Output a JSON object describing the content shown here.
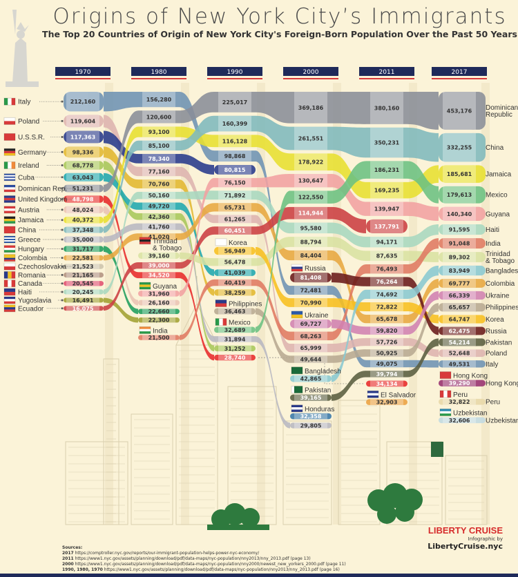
{
  "header": {
    "title": "Origins of New York City’s Immigrants",
    "subtitle": "The Top 20 Countries of Origin of New York City's Foreign-Born Population Over the Past 50 Years"
  },
  "chart_data": {
    "type": "bump",
    "title": "Origins of New York City’s Immigrants",
    "subtitle": "The Top 20 Countries of Origin of New York City's Foreign-Born Population Over the Past 50 Years",
    "years": [
      "1970",
      "1980",
      "1990",
      "2000",
      "2011",
      "2017"
    ],
    "series": [
      {
        "name": "Italy",
        "color": "#6f93b4",
        "flag": {
          "dir": "v",
          "colors": [
            "#2a9a4a",
            "#ffffff",
            "#d83a3a"
          ]
        },
        "values": [
          212160,
          156280,
          98868,
          72481,
          49075,
          49531
        ]
      },
      {
        "name": "Poland",
        "color": "#deb4b0",
        "flag": {
          "dir": "h",
          "colors": [
            "#ffffff",
            "#d83a3a"
          ]
        },
        "values": [
          119604,
          77160,
          61265,
          65999,
          57726,
          52648
        ]
      },
      {
        "name": "U.S.S.R.",
        "color": "#283a8c",
        "flag": {
          "dir": "h",
          "colors": [
            "#d83a3a"
          ]
        },
        "values": [
          117363,
          78340,
          80815,
          null,
          null,
          null
        ]
      },
      {
        "name": "Germany",
        "color": "#e2b830",
        "flag": {
          "dir": "h",
          "colors": [
            "#222222",
            "#d83a3a",
            "#f0c020"
          ]
        },
        "values": [
          98336,
          70760,
          38259,
          null,
          null,
          null
        ]
      },
      {
        "name": "Ireland",
        "color": "#a8c85a",
        "flag": {
          "dir": "v",
          "colors": [
            "#2a9a4a",
            "#ffffff",
            "#f08a3a"
          ]
        },
        "values": [
          68778,
          42360,
          31252,
          null,
          null,
          null
        ]
      },
      {
        "name": "Cuba",
        "color": "#1fa8b0",
        "flag": {
          "dir": "h",
          "colors": [
            "#2a4aa0",
            "#ffffff",
            "#2a4aa0",
            "#ffffff",
            "#2a4aa0"
          ]
        },
        "values": [
          63043,
          49720,
          41039,
          null,
          null,
          null
        ]
      },
      {
        "name": "Dominican Rep.",
        "end_name": [
          "Dominican",
          "Republic"
        ],
        "color": "#8a8e99",
        "flag": {
          "dir": "h",
          "colors": [
            "#2a4aa0",
            "#ffffff",
            "#d83a3a"
          ]
        },
        "values": [
          51231,
          120600,
          225017,
          369186,
          380160,
          453176
        ]
      },
      {
        "name": "United Kingdom",
        "color": "#e82a2a",
        "flag": {
          "dir": "h",
          "colors": [
            "#2a3a8a",
            "#d83a3a",
            "#2a3a8a"
          ]
        },
        "values": [
          48798,
          34520,
          28740,
          null,
          34134,
          null
        ]
      },
      {
        "name": "Austria",
        "color": "#eac4b4",
        "flag": {
          "dir": "h",
          "colors": [
            "#d83a3a",
            "#ffffff",
            "#d83a3a"
          ]
        },
        "values": [
          48024,
          26160,
          null,
          null,
          null,
          null
        ]
      },
      {
        "name": "Jamaica",
        "color": "#e8e030",
        "flag": {
          "dir": "h",
          "colors": [
            "#222222",
            "#f0c020",
            "#2a9a4a"
          ]
        },
        "values": [
          40372,
          93100,
          116128,
          178922,
          169235,
          185681
        ]
      },
      {
        "name": "China",
        "color": "#80babd",
        "flag": {
          "dir": "h",
          "colors": [
            "#d83a3a"
          ]
        },
        "values": [
          37348,
          85100,
          160399,
          261551,
          350231,
          332255
        ]
      },
      {
        "name": "Greece",
        "color": "#b8b8c2",
        "flag": {
          "dir": "h",
          "colors": [
            "#2a5aa8",
            "#ffffff",
            "#2a5aa8",
            "#ffffff",
            "#2a5aa8"
          ]
        },
        "values": [
          35000,
          41760,
          31894,
          29805,
          null,
          null
        ]
      },
      {
        "name": "Hungary",
        "color": "#1f9e5e",
        "flag": {
          "dir": "h",
          "colors": [
            "#d83a3a",
            "#ffffff",
            "#2a9a4a"
          ]
        },
        "values": [
          31717,
          22660,
          null,
          null,
          null,
          null
        ]
      },
      {
        "name": "Colombia",
        "color": "#e8a840",
        "flag": {
          "dir": "h",
          "colors": [
            "#f0c020",
            "#f0c020",
            "#2a3a8a",
            "#d83a3a"
          ]
        },
        "values": [
          22581,
          41020,
          65731,
          84404,
          65678,
          69777
        ]
      },
      {
        "name": "Czechoslovakia",
        "color": "#cdc4ac",
        "flag": {
          "dir": "h",
          "colors": [
            "#ffffff",
            "#d83a3a"
          ]
        },
        "values": [
          21523,
          null,
          null,
          null,
          null,
          null
        ]
      },
      {
        "name": "Romania",
        "color": "#b29280",
        "flag": {
          "dir": "v",
          "colors": [
            "#2a3a8a",
            "#f0c020",
            "#d83a3a"
          ]
        },
        "values": [
          21165,
          null,
          null,
          null,
          null,
          null
        ]
      },
      {
        "name": "Canada",
        "color": "#e05070",
        "flag": {
          "dir": "v",
          "colors": [
            "#d83a3a",
            "#ffffff",
            "#d83a3a"
          ]
        },
        "values": [
          20545,
          null,
          null,
          null,
          null,
          null
        ]
      },
      {
        "name": "Haiti",
        "color": "#a8d8c0",
        "flag": {
          "dir": "h",
          "colors": [
            "#2a3a8a",
            "#d83a3a"
          ]
        },
        "values": [
          20245,
          50160,
          71892,
          95580,
          94171,
          91595
        ]
      },
      {
        "name": "Yugoslavia",
        "color": "#a2a232",
        "flag": {
          "dir": "h",
          "colors": [
            "#2a3a8a",
            "#ffffff",
            "#d83a3a"
          ]
        },
        "values": [
          16491,
          22300,
          null,
          null,
          null,
          null
        ]
      },
      {
        "name": "Ecuador",
        "color": "#cc3f42",
        "flag": {
          "dir": "h",
          "colors": [
            "#f0c020",
            "#2a3a8a",
            "#d83a3a"
          ]
        },
        "values": [
          16075,
          39000,
          60451,
          114944,
          137791,
          null
        ]
      },
      {
        "name": "Trinidad & Tobago",
        "lines": [
          "Trinidad",
          "& Tobago"
        ],
        "color": "#d9e2a2",
        "flag": {
          "dir": "h",
          "colors": [
            "#d83a3a",
            "#222222",
            "#d83a3a"
          ]
        },
        "values": [
          null,
          39160,
          56478,
          88794,
          87635,
          89302
        ]
      },
      {
        "name": "Guyana",
        "color": "#f2a2a2",
        "flag": {
          "dir": "h",
          "colors": [
            "#2a9a4a",
            "#f0c020",
            "#2a9a4a"
          ]
        },
        "values": [
          null,
          31960,
          76150,
          130647,
          139947,
          140340
        ]
      },
      {
        "name": "India",
        "color": "#e07a62",
        "flag": {
          "dir": "h",
          "colors": [
            "#f08a3a",
            "#ffffff",
            "#2a9a4a"
          ]
        },
        "values": [
          null,
          21500,
          40419,
          68263,
          76493,
          91048
        ]
      },
      {
        "name": "Korea",
        "color": "#f8c020",
        "flag": {
          "dir": "h",
          "colors": [
            "#ffffff"
          ]
        },
        "values": [
          null,
          null,
          56949,
          70990,
          72822,
          64747
        ]
      },
      {
        "name": "Philippines",
        "color": "#b8aa92",
        "flag": {
          "dir": "h",
          "colors": [
            "#2a3a8a",
            "#d83a3a"
          ]
        },
        "values": [
          null,
          null,
          36463,
          49644,
          50925,
          65657
        ]
      },
      {
        "name": "Mexico",
        "color": "#6cc282",
        "flag": {
          "dir": "v",
          "colors": [
            "#2a9a4a",
            "#ffffff",
            "#d83a3a"
          ]
        },
        "values": [
          null,
          null,
          32689,
          122550,
          186231,
          179613
        ]
      },
      {
        "name": "Russia",
        "color": "#6a1a1a",
        "flag": {
          "dir": "h",
          "colors": [
            "#ffffff",
            "#2a3a8a",
            "#d83a3a"
          ]
        },
        "values": [
          null,
          null,
          null,
          81408,
          76264,
          62475
        ]
      },
      {
        "name": "Ukraine",
        "color": "#d282b2",
        "flag": {
          "dir": "h",
          "colors": [
            "#2a5aa8",
            "#f0c020"
          ]
        },
        "values": [
          null,
          null,
          null,
          69727,
          59820,
          66339
        ]
      },
      {
        "name": "Bangladesh",
        "color": "#8acad2",
        "flag": {
          "dir": "h",
          "colors": [
            "#1a6a3a"
          ]
        },
        "values": [
          null,
          null,
          null,
          42865,
          74692,
          83949
        ]
      },
      {
        "name": "Pakistan",
        "color": "#5a5e40",
        "flag": {
          "dir": "v",
          "colors": [
            "#ffffff",
            "#1a6a3a",
            "#1a6a3a",
            "#1a6a3a"
          ]
        },
        "values": [
          null,
          null,
          null,
          39165,
          39794,
          54214
        ]
      },
      {
        "name": "Honduras",
        "color": "#3878a8",
        "flag": {
          "dir": "h",
          "colors": [
            "#2a3a8a",
            "#ffffff",
            "#2a3a8a"
          ]
        },
        "values": [
          null,
          null,
          null,
          32358,
          null,
          null
        ]
      },
      {
        "name": "El Salvador",
        "color": "#eaa040",
        "flag": {
          "dir": "h",
          "colors": [
            "#2a3a8a",
            "#ffffff",
            "#2a3a8a"
          ]
        },
        "values": [
          null,
          null,
          null,
          null,
          32903,
          null
        ]
      },
      {
        "name": "Hong Kong",
        "color": "#983070",
        "flag": {
          "dir": "h",
          "colors": [
            "#d83a3a"
          ]
        },
        "values": [
          null,
          null,
          null,
          null,
          null,
          39290
        ]
      },
      {
        "name": "Peru",
        "color": "#e8d8a8",
        "flag": {
          "dir": "v",
          "colors": [
            "#d83a3a",
            "#ffffff",
            "#d83a3a"
          ]
        },
        "values": [
          null,
          null,
          null,
          null,
          null,
          32822
        ]
      },
      {
        "name": "Uzbekistan",
        "color": "#c2dae2",
        "flag": {
          "dir": "h",
          "colors": [
            "#2a8ab0",
            "#ffffff",
            "#2a9a4a"
          ]
        },
        "values": [
          null,
          null,
          null,
          null,
          null,
          32606
        ]
      }
    ]
  },
  "sources": {
    "heading": "Sources:",
    "items": [
      {
        "year": "2017",
        "url": "https://comptroller.nyc.gov/reports/our-immigrant-population-helps-power-nyc-economy/"
      },
      {
        "year": "2011",
        "url": "https://www1.nyc.gov/assets/planning/download/pdf/data-maps/nyc-population/nny2013/nny_2013.pdf (page 13)"
      },
      {
        "year": "2000",
        "url": "https://www1.nyc.gov/assets/planning/download/pdf/data-maps/nyc-population/nny2000/newest_new_yorkers_2000.pdf (page 11)"
      },
      {
        "year": "1990, 1980, 1970",
        "url": "https://www1.nyc.gov/assets/planning/download/pdf/data-maps/nyc-population/nny2013/nny_2013.pdf (page 16)"
      }
    ]
  },
  "brand": {
    "logo": "LIBERTY CRUISE",
    "by": "Infographic by",
    "site": "LibertyCruise.nyc"
  }
}
